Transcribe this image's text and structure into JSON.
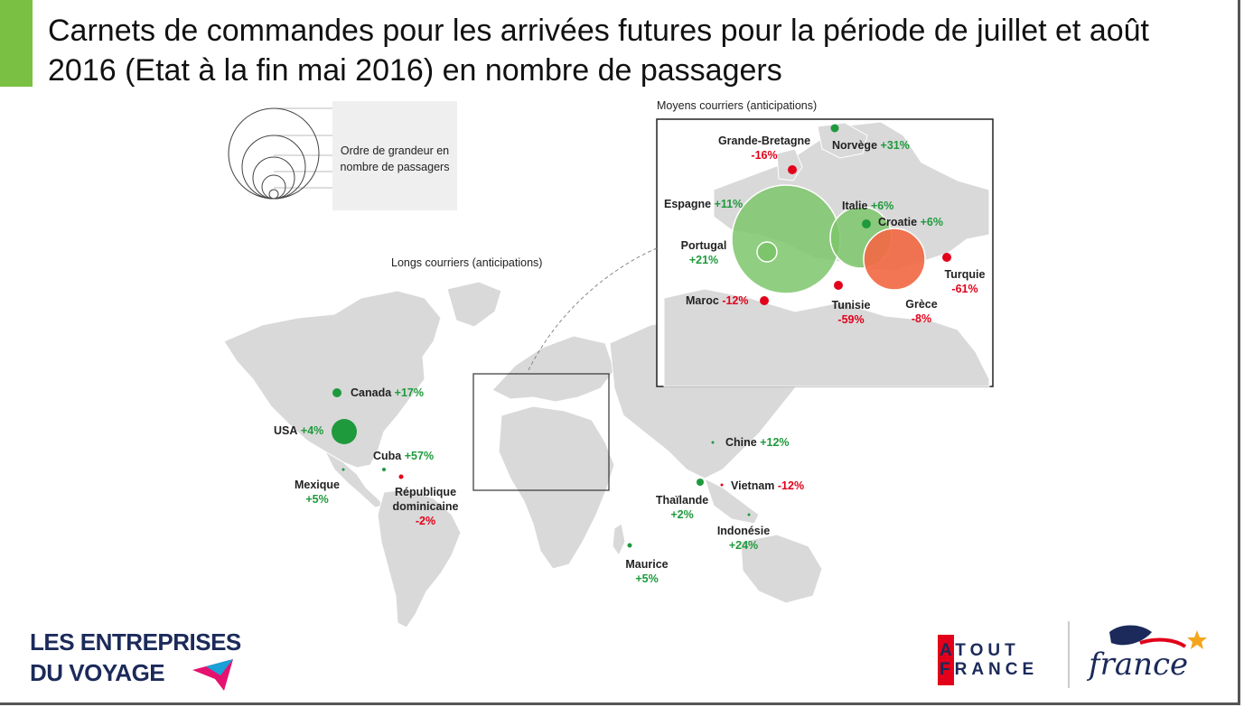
{
  "title": "Carnets de commandes pour les arrivées futures pour la période de juillet et août 2016 (Etat à la fin mai 2016) en nombre de passagers",
  "legend": {
    "text": "Ordre de grandeur en nombre de passagers"
  },
  "sections": {
    "long": "Longs courriers (anticipations)",
    "medium": "Moyens courriers (anticipations)"
  },
  "colors": {
    "increase": "#1e9a3c",
    "decrease": "#e2001a",
    "big_increase": "#7dc56b",
    "big_decrease": "#f26a45"
  },
  "long_haul": [
    {
      "name": "Canada",
      "change": "+17%"
    },
    {
      "name": "USA",
      "change": "+4%"
    },
    {
      "name": "Cuba",
      "change": "+57%"
    },
    {
      "name": "Mexique",
      "change": "+5%"
    },
    {
      "name": "République dominicaine",
      "line1": "République",
      "line2": "dominicaine",
      "change": "-2%"
    },
    {
      "name": "Chine",
      "change": "+12%"
    },
    {
      "name": "Vietnam",
      "change": "-12%"
    },
    {
      "name": "Thaïlande",
      "change": "+2%"
    },
    {
      "name": "Indonésie",
      "change": "+24%"
    },
    {
      "name": "Maurice",
      "change": "+5%"
    }
  ],
  "medium_haul": [
    {
      "name": "Grande-Bretagne",
      "change": "-16%"
    },
    {
      "name": "Norvège",
      "change": "+31%"
    },
    {
      "name": "Espagne",
      "change": "+11%"
    },
    {
      "name": "Italie",
      "change": "+6%"
    },
    {
      "name": "Croatie",
      "change": "+6%"
    },
    {
      "name": "Portugal",
      "change": "+21%"
    },
    {
      "name": "Turquie",
      "change": "-61%"
    },
    {
      "name": "Maroc",
      "change": "-12%"
    },
    {
      "name": "Tunisie",
      "change": "-59%"
    },
    {
      "name": "Grèce",
      "change": "-8%"
    }
  ],
  "logos": {
    "left_line1": "LES ENTREPRISES",
    "left_line2": "DU VOYAGE",
    "atout_line1": "ATOUT",
    "atout_line2": "FRANCE",
    "france": "france"
  }
}
